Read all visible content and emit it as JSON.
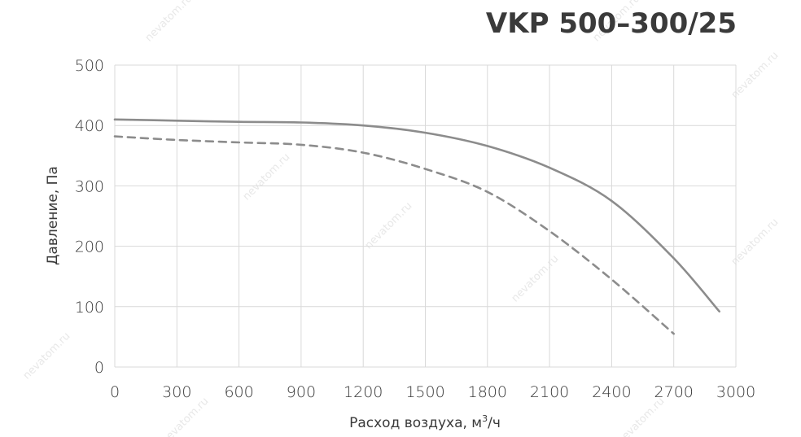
{
  "chart_data": {
    "type": "line",
    "title": "VKP 500–300/25",
    "xlabel": "Расход воздуха, м",
    "xlabel_sup": "3",
    "xlabel_suffix": "/ч",
    "ylabel": "Давление, Па",
    "xlim": [
      0,
      3000
    ],
    "ylim": [
      0,
      500
    ],
    "xticks": [
      0,
      300,
      600,
      900,
      1200,
      1500,
      1800,
      2100,
      2400,
      2700,
      3000
    ],
    "yticks": [
      0,
      100,
      200,
      300,
      400,
      500
    ],
    "grid": true,
    "series": [
      {
        "style": "solid",
        "color": "#8c8c8c",
        "x": [
          0,
          300,
          600,
          900,
          1200,
          1500,
          1800,
          2100,
          2400,
          2700,
          2920
        ],
        "y": [
          410,
          408,
          406,
          405,
          400,
          388,
          366,
          330,
          275,
          180,
          92
        ]
      },
      {
        "style": "dashed",
        "color": "#8c8c8c",
        "x": [
          0,
          300,
          600,
          900,
          1200,
          1500,
          1800,
          2100,
          2400,
          2700
        ],
        "y": [
          382,
          376,
          372,
          368,
          355,
          328,
          290,
          225,
          145,
          55
        ]
      }
    ]
  },
  "watermark": "nevatom.ru"
}
